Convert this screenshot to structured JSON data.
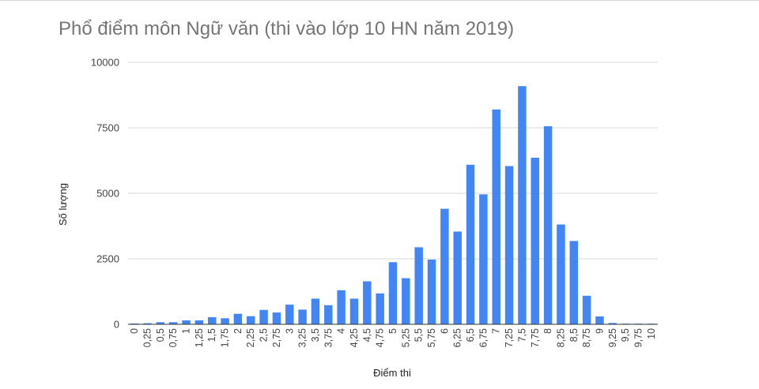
{
  "chart_data": {
    "type": "bar",
    "title": "Phổ điểm môn Ngữ văn (thi vào lớp 10 HN năm 2019)",
    "xlabel": "Điểm thi",
    "ylabel": "Số lượng",
    "ylim": [
      0,
      10000
    ],
    "yticks": [
      "0",
      "2500",
      "5000",
      "7500",
      "10000"
    ],
    "grid": true,
    "bar_color": "#4285f4",
    "categories": [
      "0",
      "0,25",
      "0,5",
      "0,75",
      "1",
      "1,25",
      "1,5",
      "1,75",
      "2",
      "2,25",
      "2,5",
      "2,75",
      "3",
      "3,25",
      "3,5",
      "3,75",
      "4",
      "4,25",
      "4,5",
      "4,75",
      "5",
      "5,25",
      "5,5",
      "5,75",
      "6",
      "6,25",
      "6,5",
      "6,75",
      "7",
      "7,25",
      "7,5",
      "7,75",
      "8",
      "8,25",
      "8,5",
      "8,75",
      "9",
      "9,25",
      "9,5",
      "9,75",
      "10"
    ],
    "values": [
      30,
      40,
      80,
      80,
      150,
      150,
      270,
      230,
      400,
      310,
      550,
      450,
      750,
      560,
      980,
      730,
      1300,
      980,
      1640,
      1180,
      2370,
      1760,
      2940,
      2470,
      4410,
      3540,
      6090,
      4960,
      8200,
      6040,
      9090,
      6360,
      7560,
      3810,
      3180,
      1090,
      300,
      50,
      10,
      5,
      5
    ]
  }
}
